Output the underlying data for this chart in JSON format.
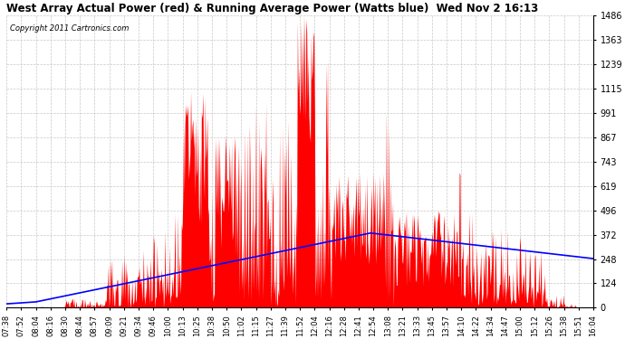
{
  "title": "West Array Actual Power (red) & Running Average Power (Watts blue)  Wed Nov 2 16:13",
  "copyright": "Copyright 2011 Cartronics.com",
  "yticks": [
    0.0,
    123.9,
    247.7,
    371.6,
    495.5,
    619.4,
    743.2,
    867.1,
    991.0,
    1114.9,
    1238.7,
    1362.6,
    1486.5
  ],
  "ymax": 1486.5,
  "ymin": 0.0,
  "bar_color": "#FF0000",
  "avg_color": "#0000FF",
  "bg_color": "#FFFFFF",
  "grid_color": "#C8C8C8",
  "x_labels": [
    "07:38",
    "07:52",
    "08:04",
    "08:16",
    "08:30",
    "08:44",
    "08:57",
    "09:09",
    "09:21",
    "09:34",
    "09:46",
    "10:00",
    "10:13",
    "10:25",
    "10:38",
    "10:50",
    "11:02",
    "11:15",
    "11:27",
    "11:39",
    "11:52",
    "12:04",
    "12:16",
    "12:28",
    "12:41",
    "12:54",
    "13:08",
    "13:21",
    "13:33",
    "13:45",
    "13:57",
    "14:10",
    "14:22",
    "14:34",
    "14:47",
    "15:00",
    "15:12",
    "15:26",
    "15:38",
    "15:51",
    "16:04"
  ],
  "figwidth": 6.9,
  "figheight": 3.75,
  "dpi": 100
}
